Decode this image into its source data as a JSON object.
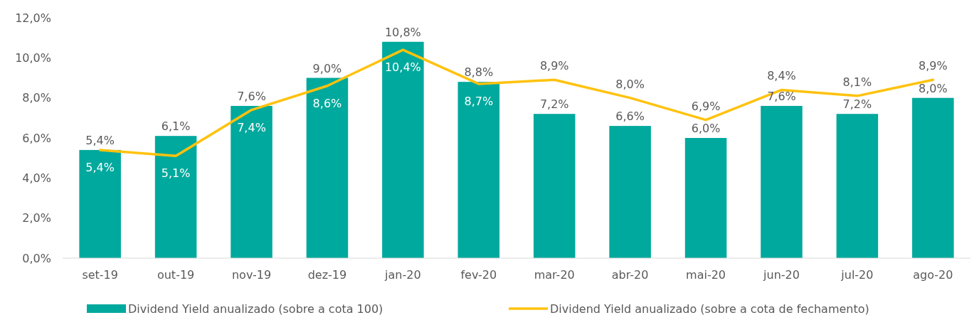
{
  "chart_data": {
    "type": "bar",
    "categories": [
      "set-19",
      "out-19",
      "nov-19",
      "dez-19",
      "jan-20",
      "fev-20",
      "mar-20",
      "abr-20",
      "mai-20",
      "jun-20",
      "jul-20",
      "ago-20"
    ],
    "series": [
      {
        "name": "Dividend Yield anualizado (sobre a cota 100)",
        "color": "#00a99d",
        "values": [
          5.4,
          6.1,
          7.6,
          9.0,
          10.8,
          8.8,
          7.2,
          6.6,
          6.0,
          7.6,
          7.2,
          8.0
        ],
        "value_labels": [
          "5,4%",
          "6,1%",
          "7,6%",
          "9,0%",
          "10,8%",
          "8,8%",
          "7,2%",
          "6,6%",
          "6,0%",
          "7,6%",
          "7,2%",
          "8,0%"
        ]
      },
      {
        "name": "Dividend Yield anualizado (sobre a cota de fechamento)",
        "type": "line",
        "color": "#ffc20e",
        "values": [
          5.4,
          5.1,
          7.4,
          8.6,
          10.4,
          8.7,
          8.9,
          8.0,
          6.9,
          8.4,
          8.1,
          8.9
        ],
        "value_labels": [
          "5,4%",
          "5,1%",
          "7,4%",
          "8,6%",
          "10,4%",
          "8,7%",
          "8,9%",
          "8,0%",
          "6,9%",
          "8,4%",
          "8,1%",
          "8,9%"
        ]
      }
    ],
    "ylim": [
      0,
      12
    ],
    "yticks": [
      {
        "value": 0,
        "label": "0,0%"
      },
      {
        "value": 2,
        "label": "2,0%"
      },
      {
        "value": 4,
        "label": "4,0%"
      },
      {
        "value": 6,
        "label": "6,0%"
      },
      {
        "value": 8,
        "label": "8,0%"
      },
      {
        "value": 10,
        "label": "10,0%"
      },
      {
        "value": 12,
        "label": "12,0%"
      }
    ],
    "grid": false,
    "legend": "bottom",
    "marker": "none",
    "line_style": "solid"
  }
}
